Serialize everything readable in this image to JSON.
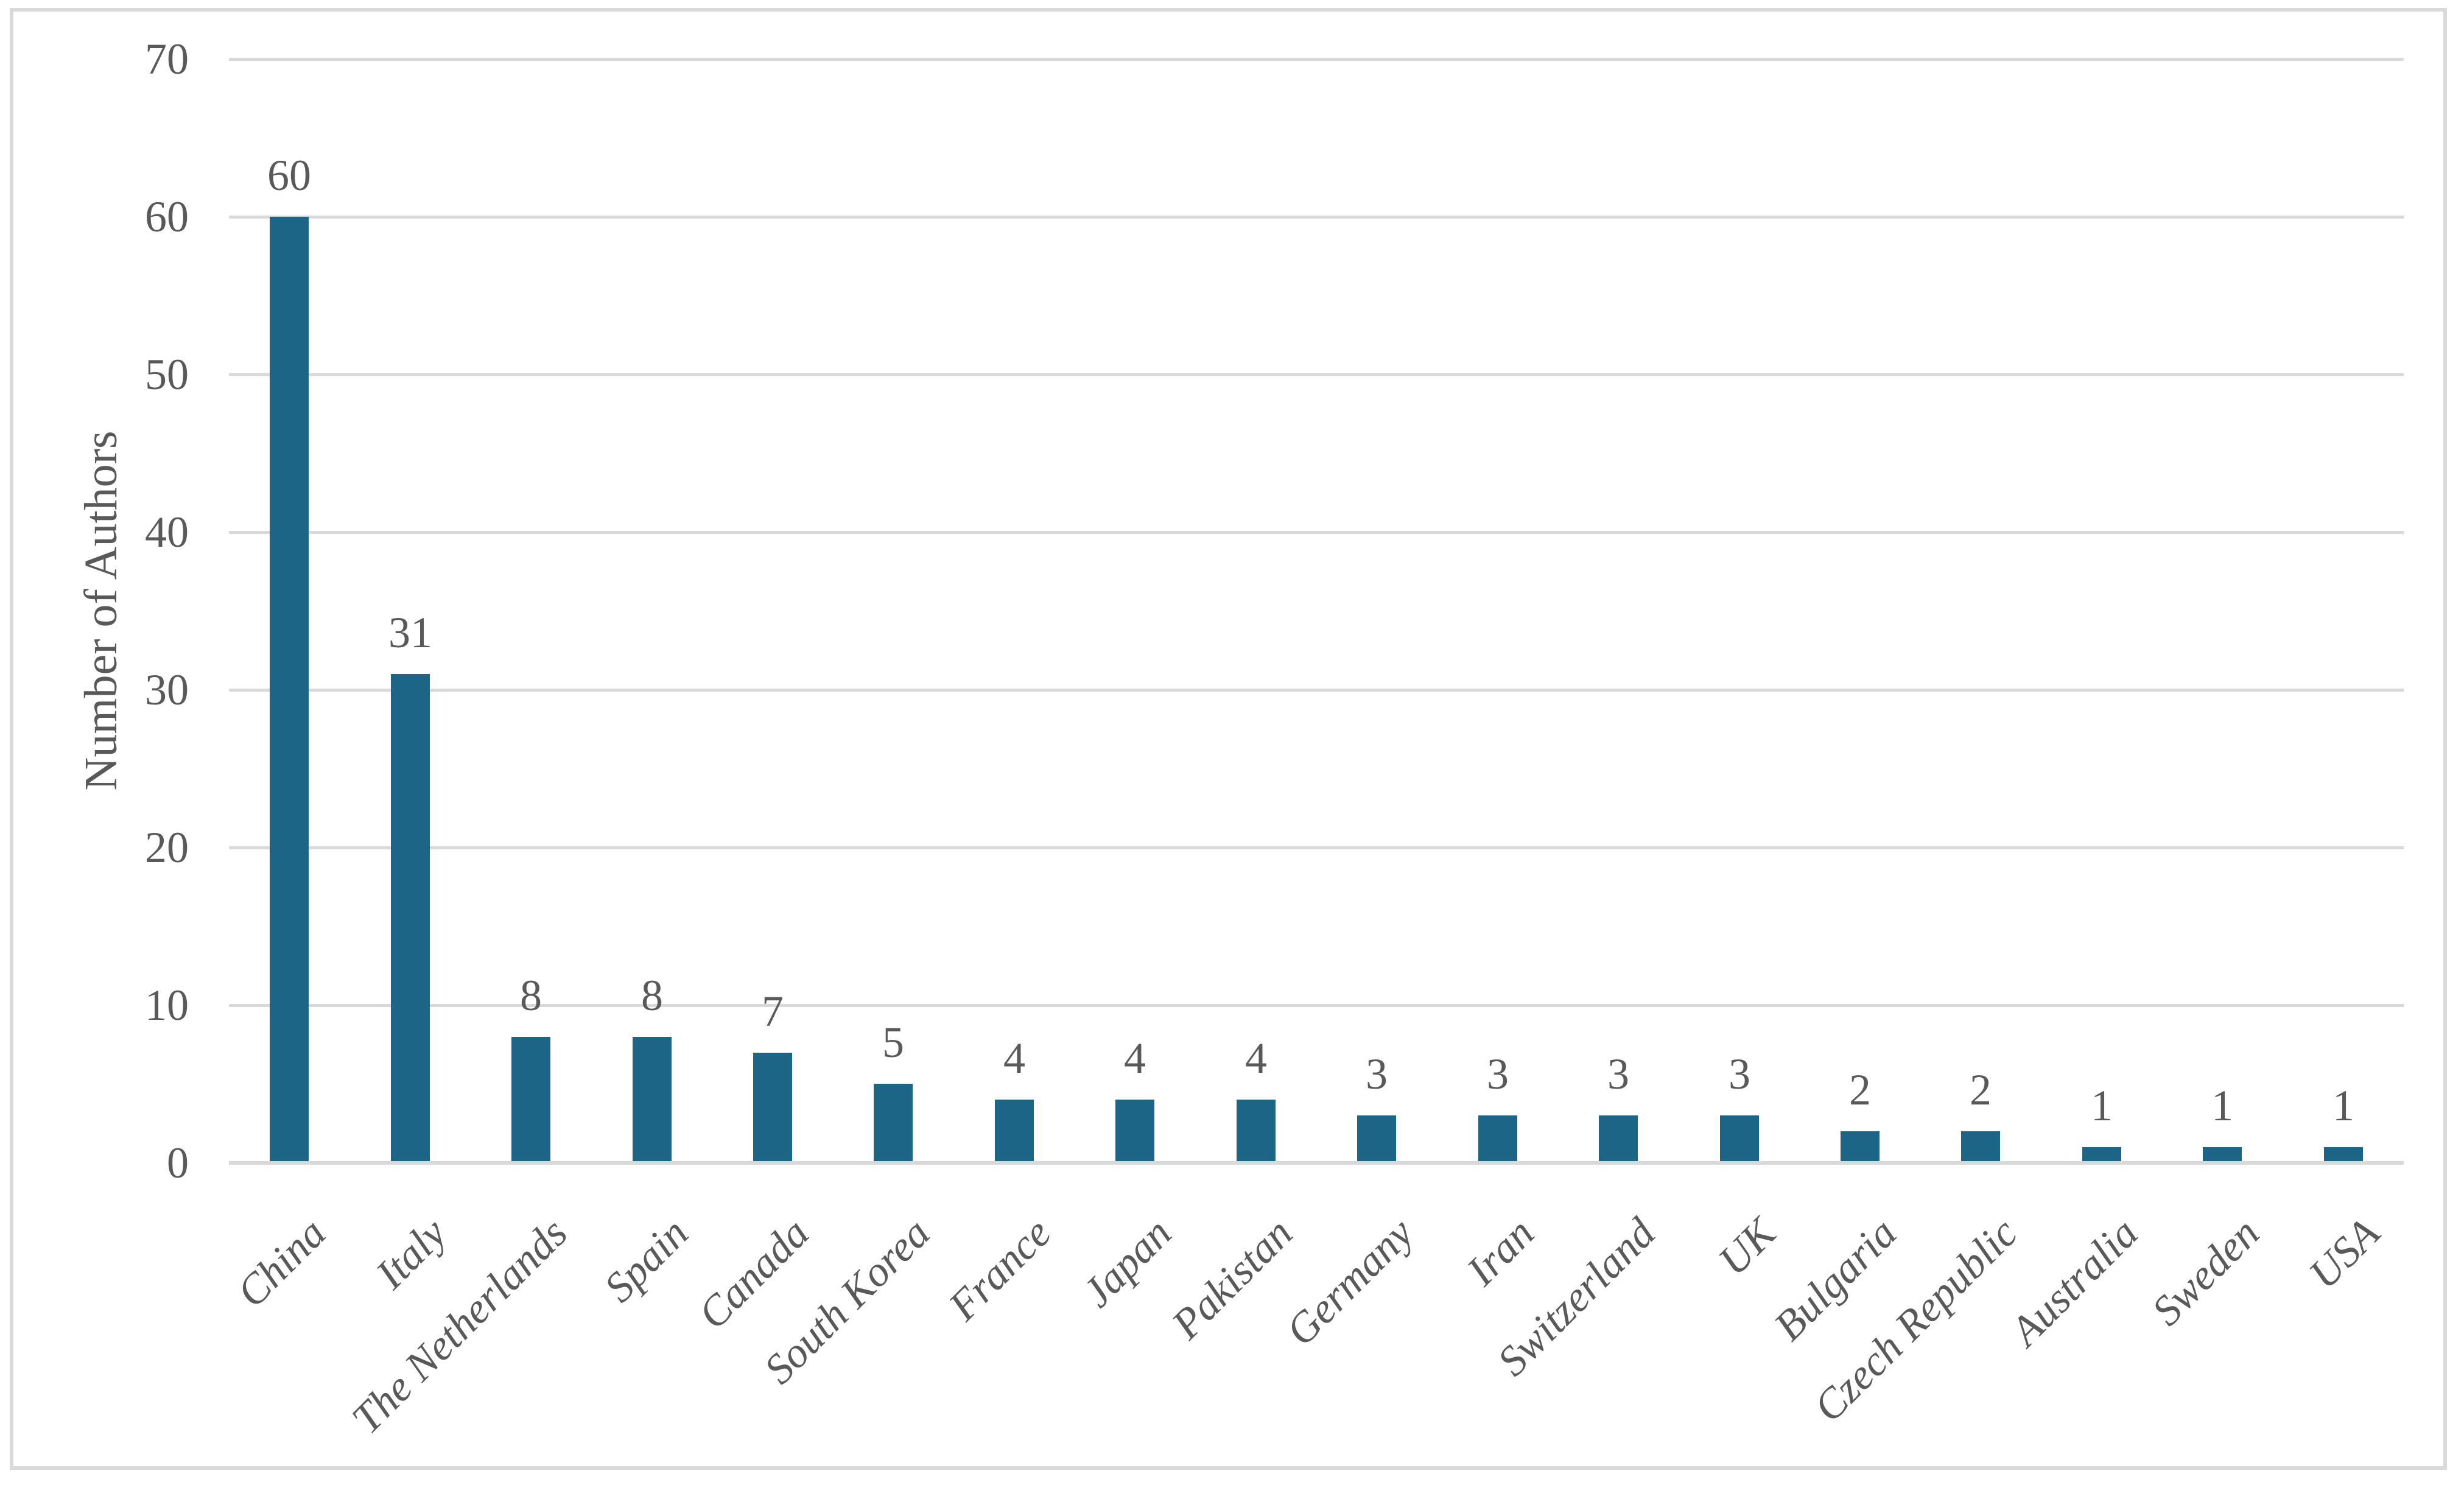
{
  "chart_data": {
    "type": "bar",
    "title": "",
    "categories": [
      "China",
      "Italy",
      "The Netherlands",
      "Spain",
      "Canada",
      "South Korea",
      "France",
      "Japan",
      "Pakistan",
      "Germany",
      "Iran",
      "Switzerland",
      "UK",
      "Bulgaria",
      "Czech Republic",
      "Australia",
      "Sweden",
      "USA"
    ],
    "values": [
      60,
      31,
      8,
      8,
      7,
      5,
      4,
      4,
      4,
      3,
      3,
      3,
      3,
      2,
      2,
      1,
      1,
      1
    ],
    "xlabel": "",
    "ylabel": "Number of Authors",
    "ylim": [
      0,
      70
    ],
    "yticks": [
      0,
      10,
      20,
      30,
      40,
      50,
      60,
      70
    ],
    "grid": "horizontal-only",
    "legend_position": "none",
    "data_labels_shown": true,
    "x_labels_rotation_degrees": 45
  },
  "colors": {
    "bar": "#1d6586",
    "gridline": "#d9d9d9",
    "axis_line": "#d9d9d9",
    "text": "#595959",
    "border": "#d9d9d9",
    "background": "#ffffff"
  }
}
